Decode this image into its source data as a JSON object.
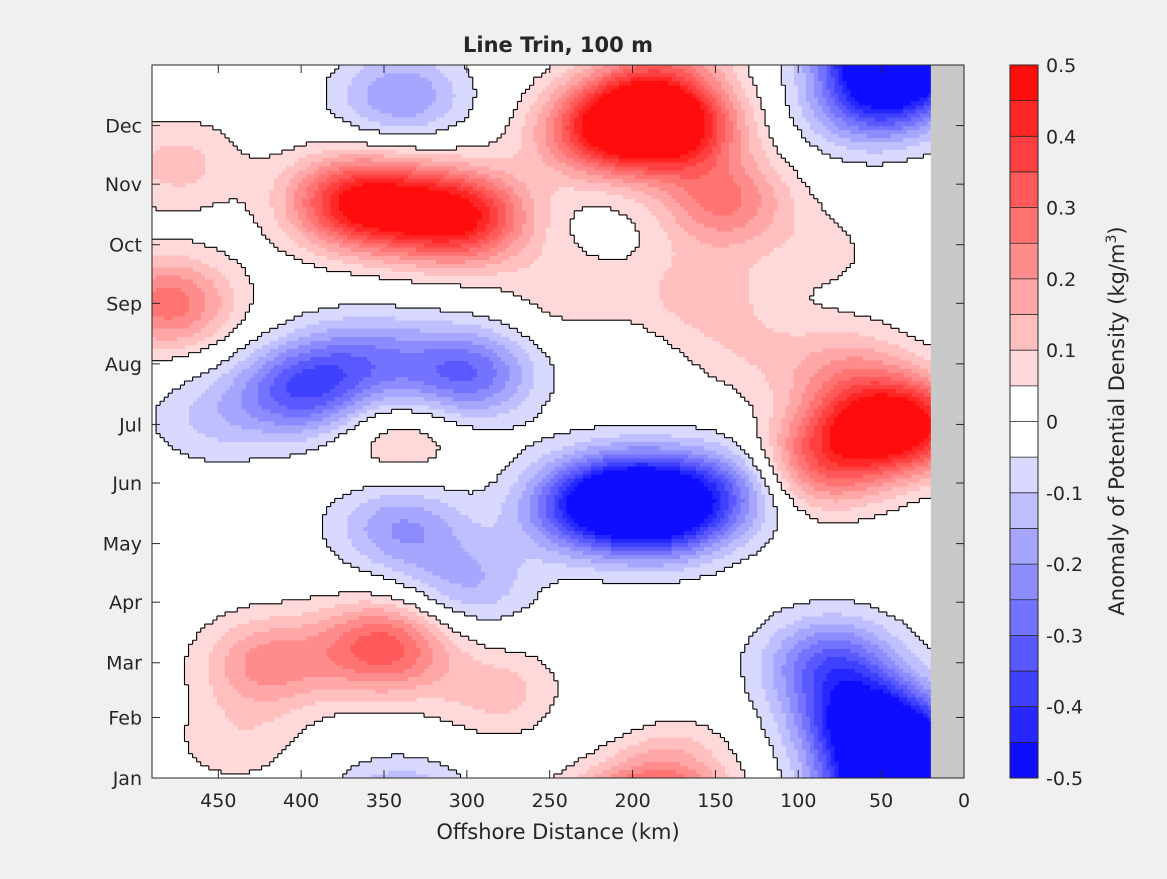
{
  "chart_data": {
    "type": "heatmap",
    "title": "Line Trin, 100 m",
    "xlabel": "Offshore Distance (km)",
    "colorbar_label_prefix": "Anomaly of Potential Density (kg/m",
    "colorbar_label_exponent": "3",
    "colorbar_label_suffix": ")",
    "xlim": [
      490,
      0
    ],
    "x_ticks": [
      450,
      400,
      350,
      300,
      250,
      200,
      150,
      100,
      50,
      0
    ],
    "x_tick_labels": [
      "450",
      "400",
      "350",
      "300",
      "250",
      "200",
      "150",
      "100",
      "50",
      "0"
    ],
    "y_ticks": [
      "Jan",
      "Feb",
      "Mar",
      "Apr",
      "May",
      "Jun",
      "Jul",
      "Aug",
      "Sep",
      "Oct",
      "Nov",
      "Dec"
    ],
    "y_tick_days": [
      1,
      32,
      60,
      91,
      121,
      152,
      182,
      213,
      244,
      274,
      305,
      335
    ],
    "ylim_days": [
      1,
      366
    ],
    "land_mask_x_range": [
      0,
      20
    ],
    "clim": [
      -0.5,
      0.5
    ],
    "contour_step": 0.05,
    "zero_contour": true,
    "colorbar_ticks": [
      0.5,
      0.4,
      0.3,
      0.2,
      0.1,
      0,
      -0.1,
      -0.2,
      -0.3,
      -0.4,
      -0.5
    ],
    "colorbar_tick_labels": [
      "0.5",
      "0.4",
      "0.3",
      "0.2",
      "0.1",
      "0",
      "-0.1",
      "-0.2",
      "-0.3",
      "-0.4",
      "-0.5"
    ],
    "colormap": {
      "negative": "#0000ff",
      "zero": "#ffffff",
      "positive": "#ff0000"
    },
    "land_color": "#c8c8c8",
    "features": [
      {
        "x": 480,
        "day": 244,
        "value": 0.28
      },
      {
        "x": 475,
        "day": 315,
        "value": 0.12
      },
      {
        "x": 420,
        "day": 60,
        "value": 0.22
      },
      {
        "x": 350,
        "day": 68,
        "value": 0.33
      },
      {
        "x": 440,
        "day": 20,
        "value": 0.08
      },
      {
        "x": 280,
        "day": 45,
        "value": 0.12
      },
      {
        "x": 180,
        "day": 8,
        "value": 0.15
      },
      {
        "x": 200,
        "day": 340,
        "value": 0.35
      },
      {
        "x": 175,
        "day": 335,
        "value": 0.4
      },
      {
        "x": 225,
        "day": 330,
        "value": 0.22
      },
      {
        "x": 370,
        "day": 296,
        "value": 0.38
      },
      {
        "x": 300,
        "day": 288,
        "value": 0.38
      },
      {
        "x": 335,
        "day": 292,
        "value": 0.24
      },
      {
        "x": 145,
        "day": 296,
        "value": 0.25
      },
      {
        "x": 160,
        "day": 250,
        "value": 0.12
      },
      {
        "x": 85,
        "day": 270,
        "value": 0.06
      },
      {
        "x": 130,
        "day": 220,
        "value": 0.08
      },
      {
        "x": 60,
        "day": 180,
        "value": 0.3
      },
      {
        "x": 30,
        "day": 182,
        "value": 0.35
      },
      {
        "x": 90,
        "day": 160,
        "value": 0.25
      },
      {
        "x": 70,
        "day": 210,
        "value": 0.15
      },
      {
        "x": 400,
        "day": 200,
        "value": -0.32
      },
      {
        "x": 360,
        "day": 215,
        "value": -0.2
      },
      {
        "x": 300,
        "day": 208,
        "value": -0.3
      },
      {
        "x": 455,
        "day": 185,
        "value": -0.1
      },
      {
        "x": 340,
        "day": 130,
        "value": -0.2
      },
      {
        "x": 300,
        "day": 100,
        "value": -0.15
      },
      {
        "x": 230,
        "day": 140,
        "value": -0.32
      },
      {
        "x": 180,
        "day": 138,
        "value": -0.4
      },
      {
        "x": 200,
        "day": 145,
        "value": -0.3
      },
      {
        "x": 140,
        "day": 150,
        "value": -0.2
      },
      {
        "x": 340,
        "day": 175,
        "value": 0.12
      },
      {
        "x": 340,
        "day": 350,
        "value": -0.2
      },
      {
        "x": 60,
        "day": 30,
        "value": -0.42
      },
      {
        "x": 35,
        "day": 15,
        "value": -0.4
      },
      {
        "x": 80,
        "day": 60,
        "value": -0.3
      },
      {
        "x": 40,
        "day": 360,
        "value": -0.4
      },
      {
        "x": 60,
        "day": 345,
        "value": -0.2
      },
      {
        "x": 210,
        "day": 30,
        "value": -0.03
      },
      {
        "x": 240,
        "day": 250,
        "value": 0.08
      }
    ]
  }
}
